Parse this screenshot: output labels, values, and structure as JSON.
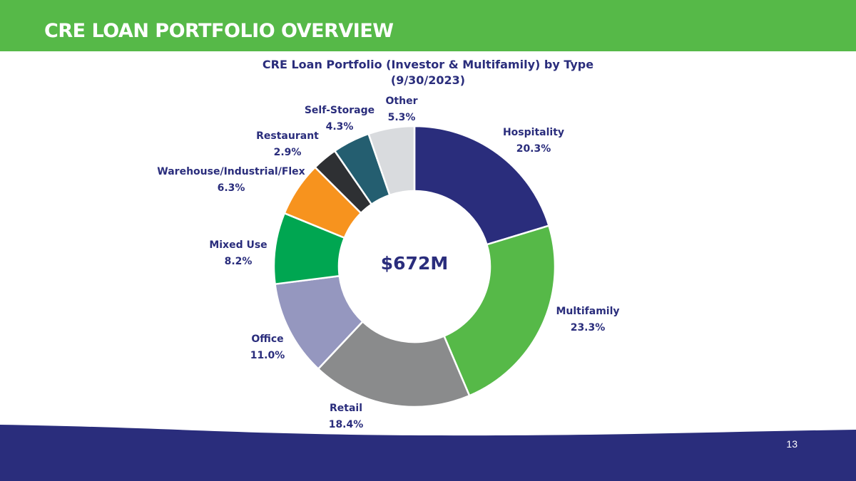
{
  "slide": {
    "title": "CRE LOAN PORTFOLIO OVERVIEW",
    "page_number": "13",
    "colors": {
      "header_green": "#56b948",
      "navy": "#2a2d7c"
    }
  },
  "chart_data": {
    "type": "pie",
    "variant": "donut",
    "title": "CRE Loan Portfolio (Investor & Multifamily) by Type",
    "subtitle": "(9/30/2023)",
    "center_label": "$672M",
    "categories": [
      "Hospitality",
      "Multifamily",
      "Retail",
      "Office",
      "Mixed Use",
      "Warehouse/Industrial/Flex",
      "Restaurant",
      "Self-Storage",
      "Other"
    ],
    "values": [
      20.3,
      23.3,
      18.4,
      11.0,
      8.2,
      6.3,
      2.9,
      4.3,
      5.3
    ],
    "value_labels": [
      "20.3%",
      "23.3%",
      "18.4%",
      "11.0%",
      "8.2%",
      "6.3%",
      "2.9%",
      "4.3%",
      "5.3%"
    ],
    "colors": [
      "#2a2d7c",
      "#56b948",
      "#8a8b8c",
      "#9597bf",
      "#00a651",
      "#f7931e",
      "#2e3033",
      "#245e70",
      "#d9dbde"
    ],
    "start_position": "12 o'clock",
    "direction": "clockwise"
  }
}
